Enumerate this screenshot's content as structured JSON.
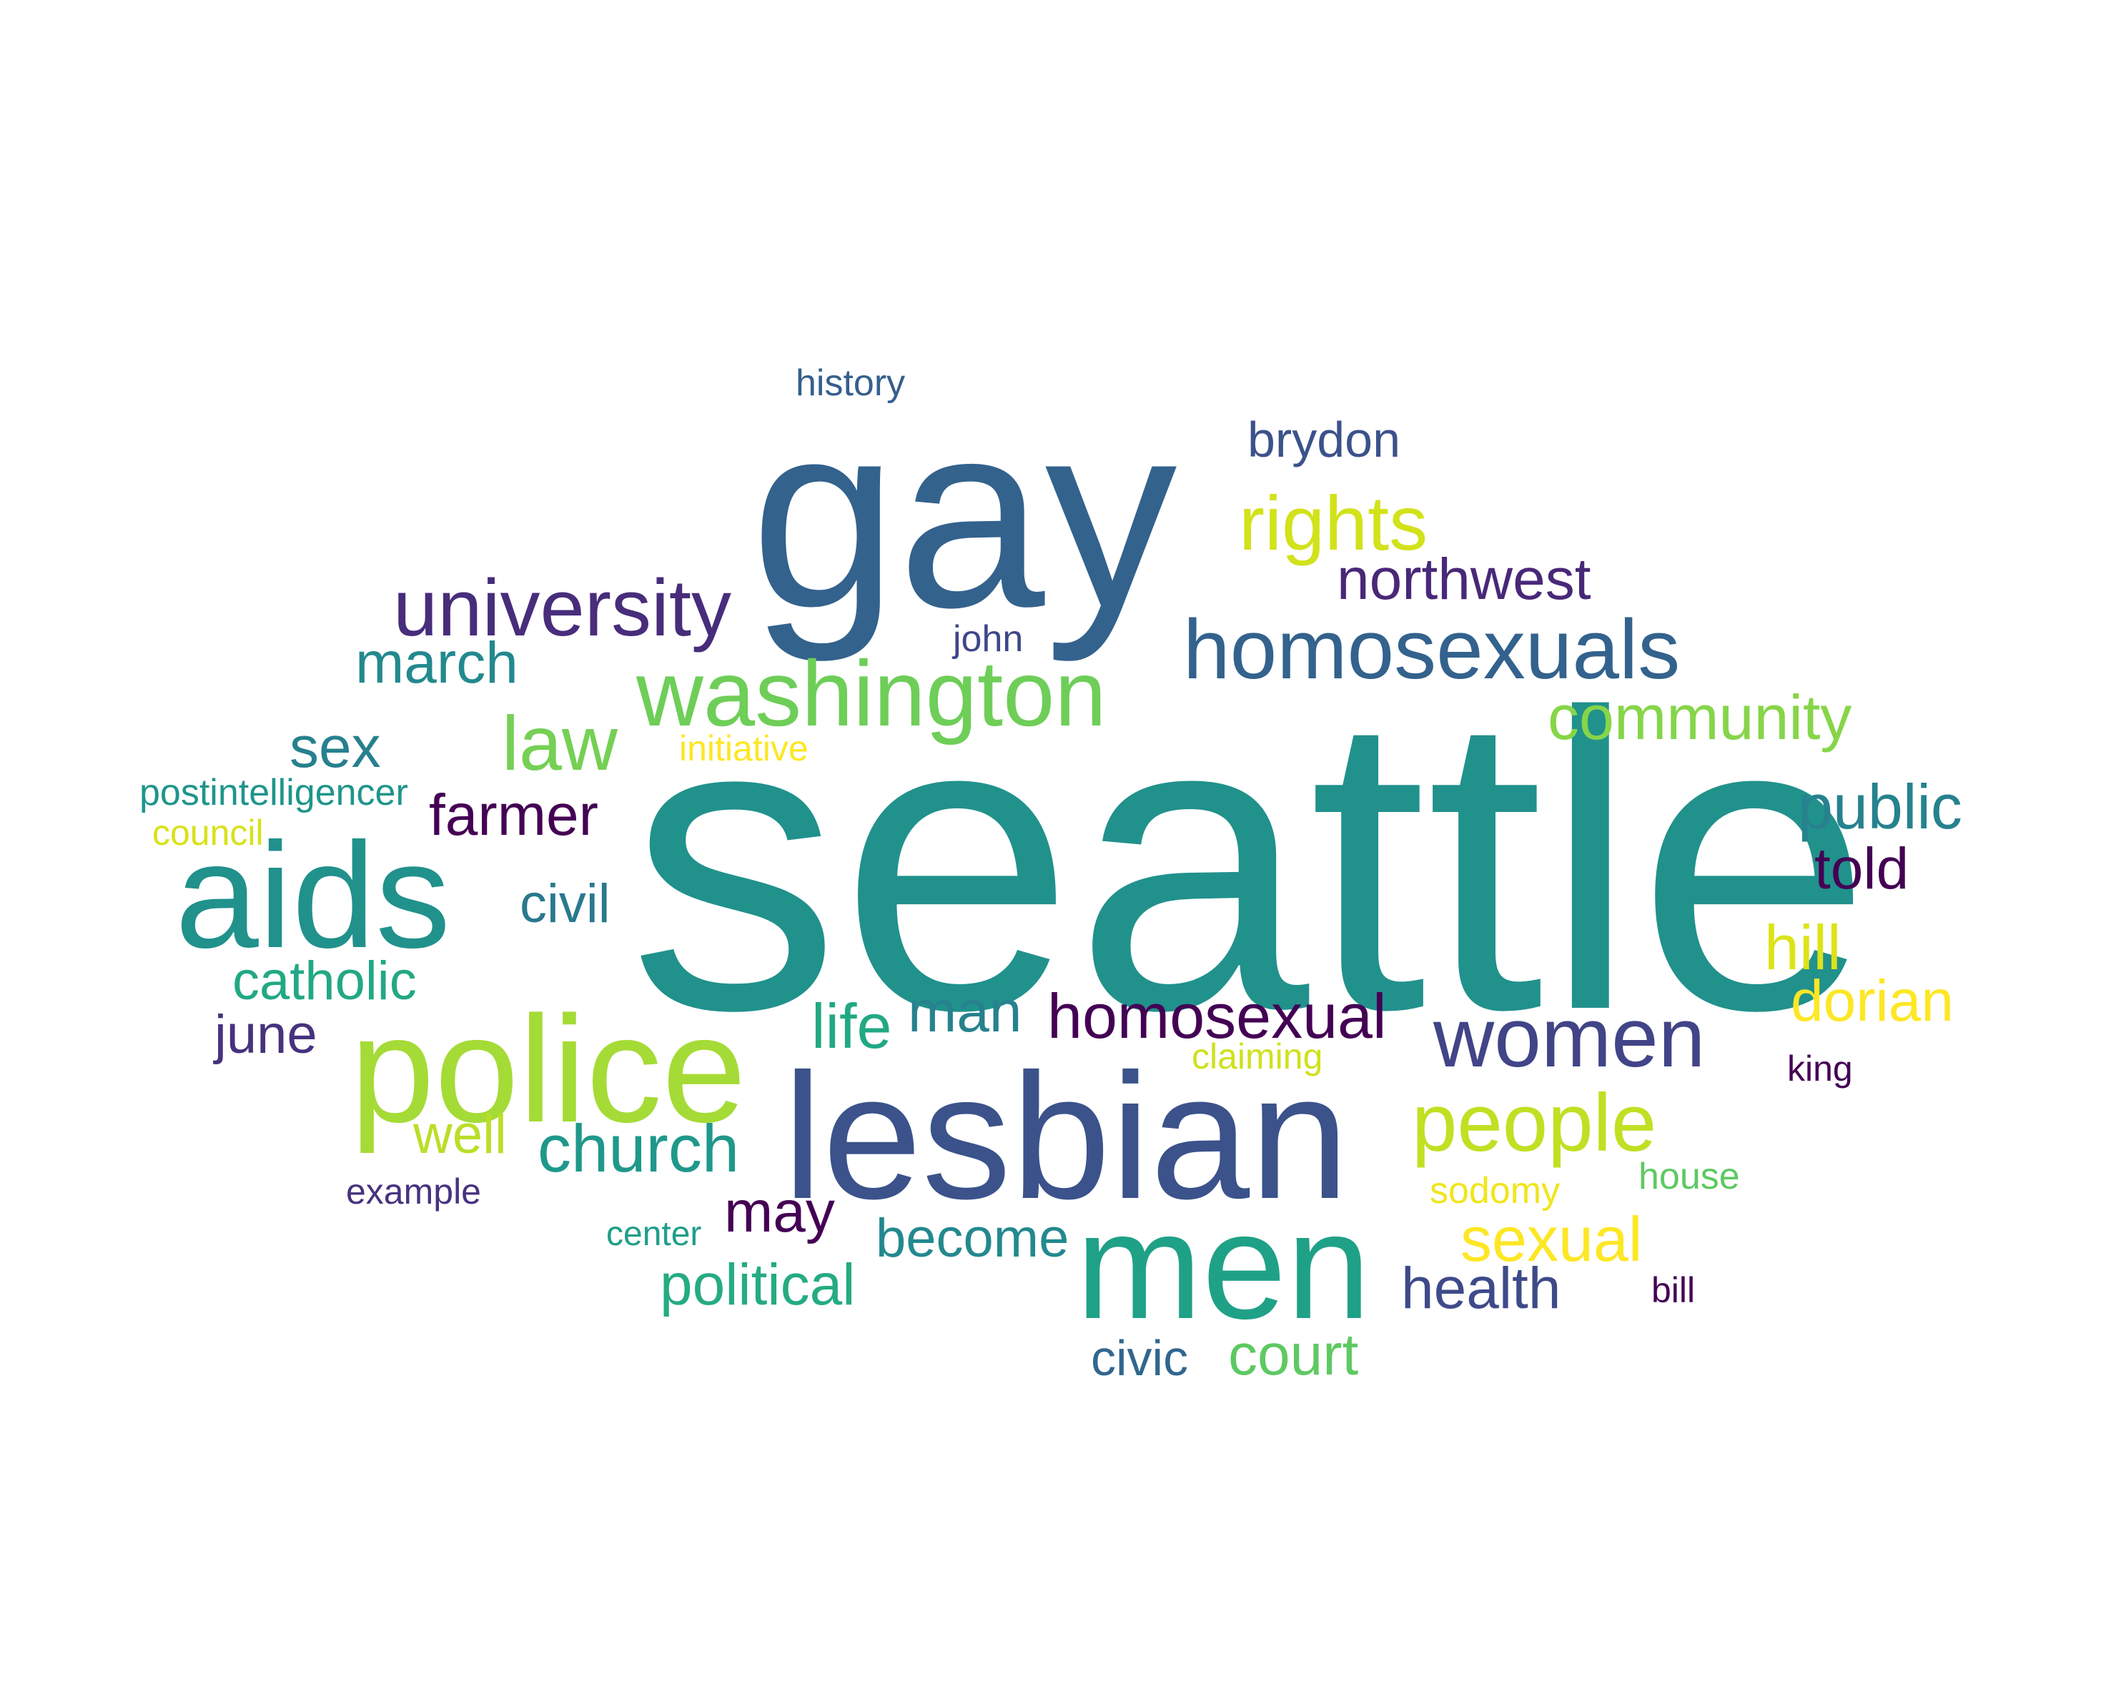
{
  "words": [
    {
      "text": "seattle",
      "color": "#21918c"
    },
    {
      "text": "gay",
      "color": "#33628d"
    },
    {
      "text": "lesbian",
      "color": "#3b528b"
    },
    {
      "text": "men",
      "color": "#1fa187"
    },
    {
      "text": "police",
      "color": "#a5db36"
    },
    {
      "text": "aids",
      "color": "#21918c"
    },
    {
      "text": "washington",
      "color": "#6ece58"
    },
    {
      "text": "homosexuals",
      "color": "#33628d"
    },
    {
      "text": "university",
      "color": "#472d7b"
    },
    {
      "text": "women",
      "color": "#414487"
    },
    {
      "text": "rights",
      "color": "#d2e21b"
    },
    {
      "text": "people",
      "color": "#c2df23"
    },
    {
      "text": "law",
      "color": "#75d054"
    },
    {
      "text": "march",
      "color": "#23898e"
    },
    {
      "text": "community",
      "color": "#86d549"
    },
    {
      "text": "homosexual",
      "color": "#440154"
    },
    {
      "text": "public",
      "color": "#26828e"
    },
    {
      "text": "church",
      "color": "#1f988b"
    },
    {
      "text": "northwest",
      "color": "#482878"
    },
    {
      "text": "sexual",
      "color": "#fde725"
    },
    {
      "text": "political",
      "color": "#25ab82"
    },
    {
      "text": "may",
      "color": "#440154"
    },
    {
      "text": "farmer",
      "color": "#440154"
    },
    {
      "text": "dorian",
      "color": "#fde725"
    },
    {
      "text": "health",
      "color": "#3e4a89"
    },
    {
      "text": "court",
      "color": "#5ec962"
    },
    {
      "text": "catholic",
      "color": "#22a884"
    },
    {
      "text": "man",
      "color": "#26828e"
    },
    {
      "text": "brydon",
      "color": "#3b528b"
    },
    {
      "text": "life",
      "color": "#22a884"
    },
    {
      "text": "hill",
      "color": "#dde318"
    },
    {
      "text": "told",
      "color": "#440154"
    },
    {
      "text": "sex",
      "color": "#27808e"
    },
    {
      "text": "june",
      "color": "#46327e"
    },
    {
      "text": "become",
      "color": "#23898e"
    },
    {
      "text": "well",
      "color": "#bade28"
    },
    {
      "text": "civil",
      "color": "#2a788e"
    },
    {
      "text": "civic",
      "color": "#31668e"
    },
    {
      "text": "postintelligencer",
      "color": "#1f958b"
    },
    {
      "text": "history",
      "color": "#355f8d"
    },
    {
      "text": "john",
      "color": "#3f4788"
    },
    {
      "text": "initiative",
      "color": "#fde725"
    },
    {
      "text": "council",
      "color": "#d8e219"
    },
    {
      "text": "claiming",
      "color": "#d0e11c"
    },
    {
      "text": "king",
      "color": "#440154"
    },
    {
      "text": "example",
      "color": "#46337f"
    },
    {
      "text": "center",
      "color": "#1f9e89"
    },
    {
      "text": "sodomy",
      "color": "#f1e51d"
    },
    {
      "text": "house",
      "color": "#5ec962"
    },
    {
      "text": "bill",
      "color": "#440154"
    }
  ]
}
